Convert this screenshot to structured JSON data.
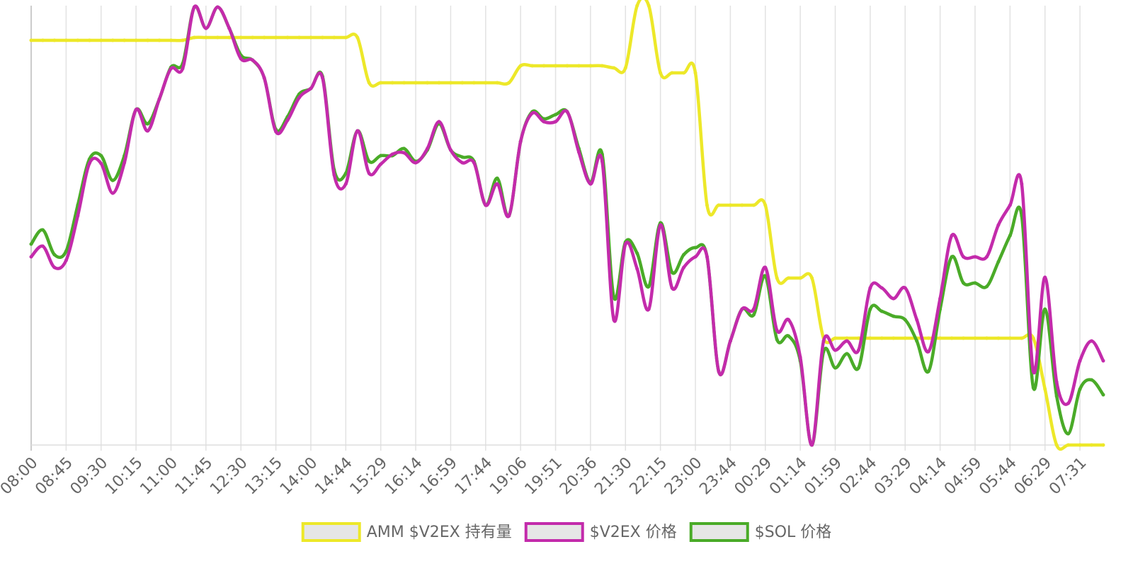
{
  "chart_data": {
    "type": "line",
    "categories": [
      "08:00",
      null,
      null,
      "08:45",
      null,
      null,
      "09:30",
      null,
      null,
      "10:15",
      null,
      null,
      "11:00",
      null,
      null,
      "11:45",
      null,
      null,
      "12:30",
      null,
      null,
      "13:15",
      null,
      null,
      "14:00",
      null,
      null,
      "14:44",
      null,
      null,
      "15:29",
      null,
      null,
      "16:14",
      null,
      null,
      "16:59",
      null,
      null,
      "17:44",
      null,
      null,
      "19:06",
      null,
      null,
      "19:51",
      null,
      null,
      "20:36",
      null,
      null,
      "21:30",
      null,
      null,
      "22:15",
      null,
      null,
      "23:00",
      null,
      null,
      "23:44",
      null,
      null,
      "00:29",
      null,
      null,
      "01:14",
      null,
      null,
      "01:59",
      null,
      null,
      "02:44",
      null,
      null,
      "03:29",
      null,
      null,
      "04:14",
      null,
      null,
      "04:59",
      null,
      null,
      "05:44",
      null,
      null,
      "06:29",
      null,
      null,
      "07:31",
      null,
      null
    ],
    "ylim": [
      0,
      621
    ],
    "grid": true,
    "legend": "bottom",
    "series": [
      {
        "name": "AMM $V2EX 持有量",
        "color": "#ede829",
        "values": [
          572,
          572,
          572,
          572,
          572,
          572,
          572,
          572,
          572,
          572,
          572,
          572,
          572,
          572,
          576,
          576,
          576,
          576,
          576,
          576,
          576,
          576,
          576,
          576,
          576,
          576,
          576,
          576,
          576,
          512,
          512,
          512,
          512,
          512,
          512,
          512,
          512,
          512,
          512,
          512,
          512,
          512,
          536,
          536,
          536,
          536,
          536,
          536,
          536,
          536,
          533,
          533,
          621,
          621,
          526,
          526,
          526,
          526,
          339,
          339,
          339,
          339,
          339,
          339,
          236,
          236,
          236,
          236,
          151,
          151,
          151,
          151,
          151,
          151,
          151,
          151,
          151,
          151,
          151,
          151,
          151,
          151,
          151,
          151,
          151,
          151,
          151,
          79,
          0,
          0,
          0,
          0,
          0
        ]
      },
      {
        "name": "$V2EX 价格",
        "color": "#c32bab",
        "values": [
          266,
          281,
          251,
          261,
          324,
          398,
          398,
          356,
          399,
          474,
          444,
          489,
          532,
          532,
          619,
          589,
          619,
          589,
          546,
          544,
          519,
          443,
          459,
          491,
          504,
          519,
          382,
          369,
          444,
          384,
          397,
          411,
          413,
          399,
          419,
          457,
          417,
          399,
          399,
          339,
          369,
          324,
          429,
          469,
          457,
          457,
          471,
          414,
          369,
          401,
          177,
          284,
          249,
          192,
          311,
          222,
          251,
          266,
          266,
          104,
          147,
          192,
          192,
          251,
          162,
          177,
          124,
          0,
          147,
          134,
          147,
          134,
          222,
          222,
          207,
          222,
          177,
          132,
          207,
          296,
          266,
          266,
          266,
          311,
          339,
          369,
          104,
          237,
          89,
          59,
          119,
          147,
          119
        ]
      },
      {
        "name": "$SOL 价格",
        "color": "#4aab28",
        "values": [
          284,
          304,
          269,
          274,
          339,
          404,
          409,
          374,
          409,
          474,
          454,
          489,
          534,
          539,
          619,
          589,
          619,
          589,
          551,
          544,
          519,
          446,
          464,
          496,
          504,
          521,
          389,
          384,
          444,
          401,
          409,
          409,
          419,
          401,
          417,
          454,
          417,
          407,
          401,
          339,
          377,
          324,
          429,
          471,
          461,
          467,
          471,
          419,
          371,
          411,
          209,
          287,
          271,
          224,
          314,
          244,
          269,
          279,
          266,
          104,
          147,
          192,
          184,
          239,
          149,
          154,
          119,
          0,
          132,
          109,
          129,
          109,
          192,
          189,
          182,
          177,
          147,
          104,
          192,
          266,
          229,
          229,
          224,
          259,
          296,
          324,
          81,
          192,
          69,
          16,
          79,
          92,
          71
        ]
      }
    ]
  }
}
